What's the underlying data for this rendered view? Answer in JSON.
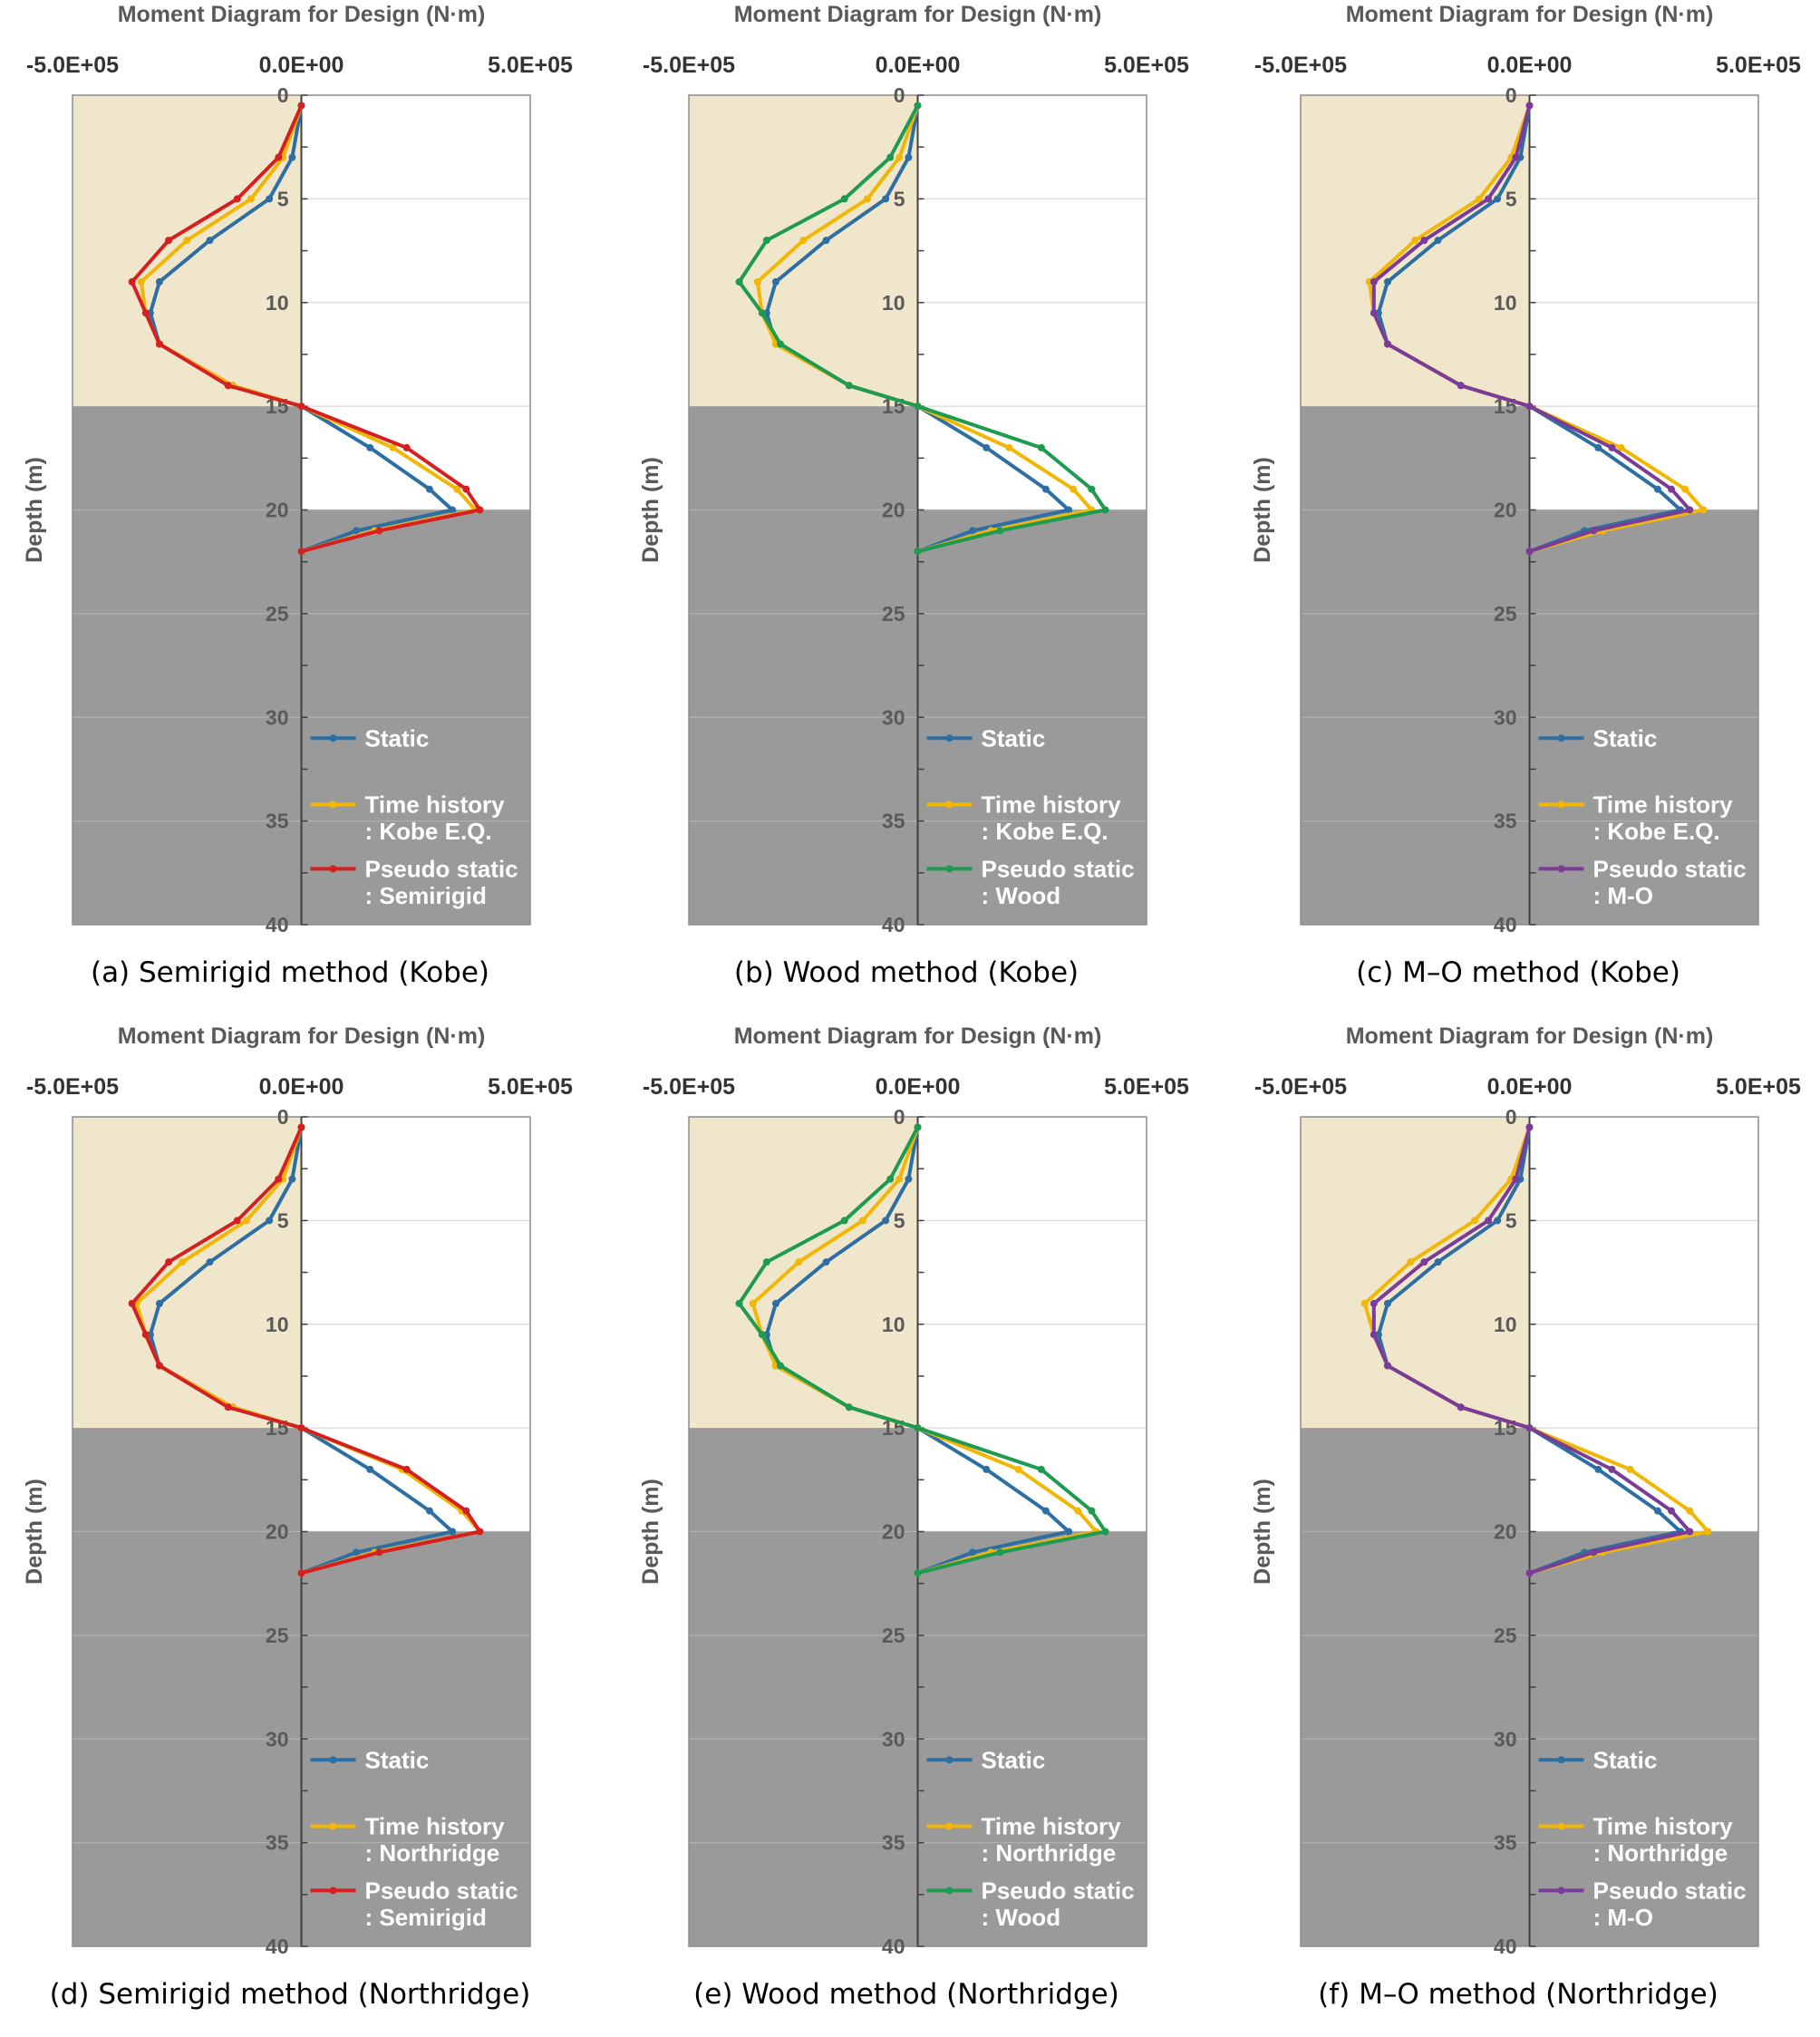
{
  "colors": {
    "static": "#2e6fa3",
    "time_history": "#f2b705",
    "semirigid": "#d42020",
    "wood": "#1e9b50",
    "mo": "#7a3c96",
    "upper_layer": "#f0e6cc",
    "lower_layer": "#9a9a9a"
  },
  "chart_data": [
    {
      "type": "line",
      "caption": "(a) Semirigid method (Kobe)",
      "title": "Moment Diagram for Design (N·m)",
      "xlabel": "Moment Diagram for Design (N·m)",
      "ylabel": "Depth (m)",
      "xlim": [
        -500000,
        500000
      ],
      "ylim": [
        0,
        40
      ],
      "x_ticks": [
        "-5.0E+05",
        "0.0E+00",
        "5.0E+05"
      ],
      "y_ticks": [
        "0",
        "5",
        "10",
        "15",
        "20",
        "25",
        "30",
        "35",
        "40"
      ],
      "y_axis": "depth (inverted, 0 at top)",
      "soil_layers": [
        {
          "from": 0,
          "to": 15,
          "side": "negative moment"
        },
        {
          "from": 15,
          "to": 20,
          "side": "negative moment"
        },
        {
          "from": 20,
          "to": 40,
          "side": "full width"
        }
      ],
      "legend": [
        "Static",
        "Time history",
        ": Kobe E.Q.",
        "Pseudo static",
        ": Semirigid"
      ],
      "series": [
        {
          "name": "Static",
          "color_key": "static",
          "depth": [
            0.5,
            3,
            5,
            7,
            9,
            10.5,
            12,
            14,
            15,
            17,
            19,
            20,
            21,
            22
          ],
          "moment": [
            0,
            -20000,
            -70000,
            -200000,
            -310000,
            -330000,
            -310000,
            -150000,
            0,
            150000,
            280000,
            330000,
            120000,
            0
          ]
        },
        {
          "name": "Time history",
          "color_key": "time_history",
          "event": "Kobe E.Q.",
          "depth": [
            0.5,
            3,
            5,
            7,
            9,
            10.5,
            12,
            14,
            15,
            17,
            19,
            20,
            21,
            22
          ],
          "moment": [
            0,
            -40000,
            -110000,
            -250000,
            -350000,
            -340000,
            -310000,
            -150000,
            0,
            200000,
            340000,
            380000,
            160000,
            0
          ]
        },
        {
          "name": "Pseudo static",
          "color_key": "semirigid",
          "method": "Semirigid",
          "depth": [
            0.5,
            3,
            5,
            7,
            9,
            10.5,
            12,
            14,
            15,
            17,
            19,
            20,
            21,
            22
          ],
          "moment": [
            0,
            -50000,
            -140000,
            -290000,
            -370000,
            -340000,
            -310000,
            -160000,
            0,
            230000,
            360000,
            390000,
            170000,
            0
          ]
        }
      ]
    },
    {
      "type": "line",
      "caption": "(b) Wood method (Kobe)",
      "title": "Moment Diagram for Design (N·m)",
      "xlabel": "Moment Diagram for Design (N·m)",
      "ylabel": "Depth (m)",
      "xlim": [
        -500000,
        500000
      ],
      "ylim": [
        0,
        40
      ],
      "x_ticks": [
        "-5.0E+05",
        "0.0E+00",
        "5.0E+05"
      ],
      "y_ticks": [
        "0",
        "5",
        "10",
        "15",
        "20",
        "25",
        "30",
        "35",
        "40"
      ],
      "legend": [
        "Static",
        "Time history",
        ": Kobe E.Q.",
        "Pseudo static",
        ": Wood"
      ],
      "series": [
        {
          "name": "Static",
          "color_key": "static",
          "depth": [
            0.5,
            3,
            5,
            7,
            9,
            10.5,
            12,
            14,
            15,
            17,
            19,
            20,
            21,
            22
          ],
          "moment": [
            0,
            -20000,
            -70000,
            -200000,
            -310000,
            -330000,
            -310000,
            -150000,
            0,
            150000,
            280000,
            330000,
            120000,
            0
          ]
        },
        {
          "name": "Time history",
          "color_key": "time_history",
          "event": "Kobe E.Q.",
          "depth": [
            0.5,
            3,
            5,
            7,
            9,
            10.5,
            12,
            14,
            15,
            17,
            19,
            20,
            21,
            22
          ],
          "moment": [
            0,
            -40000,
            -110000,
            -250000,
            -350000,
            -340000,
            -310000,
            -150000,
            0,
            200000,
            340000,
            380000,
            160000,
            0
          ]
        },
        {
          "name": "Pseudo static",
          "color_key": "wood",
          "method": "Wood",
          "depth": [
            0.5,
            3,
            5,
            7,
            9,
            10.5,
            12,
            14,
            15,
            17,
            19,
            20,
            21,
            22
          ],
          "moment": [
            0,
            -60000,
            -160000,
            -330000,
            -390000,
            -340000,
            -300000,
            -150000,
            0,
            270000,
            380000,
            410000,
            180000,
            0
          ]
        }
      ]
    },
    {
      "type": "line",
      "caption": "(c) M–O method (Kobe)",
      "title": "Moment Diagram for Design (N·m)",
      "xlabel": "Moment Diagram for Design (N·m)",
      "ylabel": "Depth (m)",
      "xlim": [
        -500000,
        500000
      ],
      "ylim": [
        0,
        40
      ],
      "x_ticks": [
        "-5.0E+05",
        "0.0E+00",
        "5.0E+05"
      ],
      "y_ticks": [
        "0",
        "5",
        "10",
        "15",
        "20",
        "25",
        "30",
        "35",
        "40"
      ],
      "legend": [
        "Static",
        "Time history",
        ": Kobe E.Q.",
        "Pseudo static",
        ": M-O"
      ],
      "series": [
        {
          "name": "Static",
          "color_key": "static",
          "depth": [
            0.5,
            3,
            5,
            7,
            9,
            10.5,
            12,
            14,
            15,
            17,
            19,
            20,
            21,
            22
          ],
          "moment": [
            0,
            -20000,
            -70000,
            -200000,
            -310000,
            -330000,
            -310000,
            -150000,
            0,
            150000,
            280000,
            330000,
            120000,
            0
          ]
        },
        {
          "name": "Time history",
          "color_key": "time_history",
          "event": "Kobe E.Q.",
          "depth": [
            0.5,
            3,
            5,
            7,
            9,
            10.5,
            12,
            14,
            15,
            17,
            19,
            20,
            21,
            22
          ],
          "moment": [
            0,
            -40000,
            -110000,
            -250000,
            -350000,
            -340000,
            -310000,
            -150000,
            0,
            200000,
            340000,
            380000,
            160000,
            0
          ]
        },
        {
          "name": "Pseudo static",
          "color_key": "mo",
          "method": "M-O",
          "depth": [
            0.5,
            3,
            5,
            7,
            9,
            10.5,
            12,
            14,
            15,
            17,
            19,
            20,
            21,
            22
          ],
          "moment": [
            0,
            -30000,
            -90000,
            -230000,
            -340000,
            -340000,
            -310000,
            -150000,
            0,
            180000,
            310000,
            350000,
            140000,
            0
          ]
        }
      ]
    },
    {
      "type": "line",
      "caption": "(d) Semirigid method (Northridge)",
      "title": "Moment Diagram for Design (N·m)",
      "xlabel": "Moment Diagram for Design (N·m)",
      "ylabel": "Depth (m)",
      "xlim": [
        -500000,
        500000
      ],
      "ylim": [
        0,
        40
      ],
      "x_ticks": [
        "-5.0E+05",
        "0.0E+00",
        "5.0E+05"
      ],
      "y_ticks": [
        "0",
        "5",
        "10",
        "15",
        "20",
        "25",
        "30",
        "35",
        "40"
      ],
      "legend": [
        "Static",
        "Time history",
        ": Northridge",
        "Pseudo static",
        ": Semirigid"
      ],
      "series": [
        {
          "name": "Static",
          "color_key": "static",
          "depth": [
            0.5,
            3,
            5,
            7,
            9,
            10.5,
            12,
            14,
            15,
            17,
            19,
            20,
            21,
            22
          ],
          "moment": [
            0,
            -20000,
            -70000,
            -200000,
            -310000,
            -330000,
            -310000,
            -150000,
            0,
            150000,
            280000,
            330000,
            120000,
            0
          ]
        },
        {
          "name": "Time history",
          "color_key": "time_history",
          "event": "Northridge",
          "depth": [
            0.5,
            3,
            5,
            7,
            9,
            10.5,
            12,
            14,
            15,
            17,
            19,
            20,
            21,
            22
          ],
          "moment": [
            0,
            -40000,
            -120000,
            -260000,
            -360000,
            -340000,
            -310000,
            -150000,
            0,
            220000,
            350000,
            390000,
            160000,
            0
          ]
        },
        {
          "name": "Pseudo static",
          "color_key": "semirigid",
          "method": "Semirigid",
          "depth": [
            0.5,
            3,
            5,
            7,
            9,
            10.5,
            12,
            14,
            15,
            17,
            19,
            20,
            21,
            22
          ],
          "moment": [
            0,
            -50000,
            -140000,
            -290000,
            -370000,
            -340000,
            -310000,
            -160000,
            0,
            230000,
            360000,
            390000,
            170000,
            0
          ]
        }
      ]
    },
    {
      "type": "line",
      "caption": "(e) Wood method (Northridge)",
      "title": "Moment Diagram for Design (N·m)",
      "xlabel": "Moment Diagram for Design (N·m)",
      "ylabel": "Depth (m)",
      "xlim": [
        -500000,
        500000
      ],
      "ylim": [
        0,
        40
      ],
      "x_ticks": [
        "-5.0E+05",
        "0.0E+00",
        "5.0E+05"
      ],
      "y_ticks": [
        "0",
        "5",
        "10",
        "15",
        "20",
        "25",
        "30",
        "35",
        "40"
      ],
      "legend": [
        "Static",
        "Time history",
        ": Northridge",
        "Pseudo static",
        ": Wood"
      ],
      "series": [
        {
          "name": "Static",
          "color_key": "static",
          "depth": [
            0.5,
            3,
            5,
            7,
            9,
            10.5,
            12,
            14,
            15,
            17,
            19,
            20,
            21,
            22
          ],
          "moment": [
            0,
            -20000,
            -70000,
            -200000,
            -310000,
            -330000,
            -310000,
            -150000,
            0,
            150000,
            280000,
            330000,
            120000,
            0
          ]
        },
        {
          "name": "Time history",
          "color_key": "time_history",
          "event": "Northridge",
          "depth": [
            0.5,
            3,
            5,
            7,
            9,
            10.5,
            12,
            14,
            15,
            17,
            19,
            20,
            21,
            22
          ],
          "moment": [
            0,
            -40000,
            -120000,
            -260000,
            -360000,
            -340000,
            -310000,
            -150000,
            0,
            220000,
            350000,
            390000,
            160000,
            0
          ]
        },
        {
          "name": "Pseudo static",
          "color_key": "wood",
          "method": "Wood",
          "depth": [
            0.5,
            3,
            5,
            7,
            9,
            10.5,
            12,
            14,
            15,
            17,
            19,
            20,
            21,
            22
          ],
          "moment": [
            0,
            -60000,
            -160000,
            -330000,
            -390000,
            -340000,
            -300000,
            -150000,
            0,
            270000,
            380000,
            410000,
            180000,
            0
          ]
        }
      ]
    },
    {
      "type": "line",
      "caption": "(f) M–O method (Northridge)",
      "title": "Moment Diagram for Design (N·m)",
      "xlabel": "Moment Diagram for Design (N·m)",
      "ylabel": "Depth (m)",
      "xlim": [
        -500000,
        500000
      ],
      "ylim": [
        0,
        40
      ],
      "x_ticks": [
        "-5.0E+05",
        "0.0E+00",
        "5.0E+05"
      ],
      "y_ticks": [
        "0",
        "5",
        "10",
        "15",
        "20",
        "25",
        "30",
        "35",
        "40"
      ],
      "legend": [
        "Static",
        "Time history",
        ": Northridge",
        "Pseudo static",
        ": M-O"
      ],
      "series": [
        {
          "name": "Static",
          "color_key": "static",
          "depth": [
            0.5,
            3,
            5,
            7,
            9,
            10.5,
            12,
            14,
            15,
            17,
            19,
            20,
            21,
            22
          ],
          "moment": [
            0,
            -20000,
            -70000,
            -200000,
            -310000,
            -330000,
            -310000,
            -150000,
            0,
            150000,
            280000,
            330000,
            120000,
            0
          ]
        },
        {
          "name": "Time history",
          "color_key": "time_history",
          "event": "Northridge",
          "depth": [
            0.5,
            3,
            5,
            7,
            9,
            10.5,
            12,
            14,
            15,
            17,
            19,
            20,
            21,
            22
          ],
          "moment": [
            0,
            -40000,
            -120000,
            -260000,
            -360000,
            -340000,
            -310000,
            -150000,
            0,
            220000,
            350000,
            390000,
            160000,
            0
          ]
        },
        {
          "name": "Pseudo static",
          "color_key": "mo",
          "method": "M-O",
          "depth": [
            0.5,
            3,
            5,
            7,
            9,
            10.5,
            12,
            14,
            15,
            17,
            19,
            20,
            21,
            22
          ],
          "moment": [
            0,
            -30000,
            -90000,
            -230000,
            -340000,
            -340000,
            -310000,
            -150000,
            0,
            180000,
            310000,
            350000,
            140000,
            0
          ]
        }
      ]
    }
  ]
}
